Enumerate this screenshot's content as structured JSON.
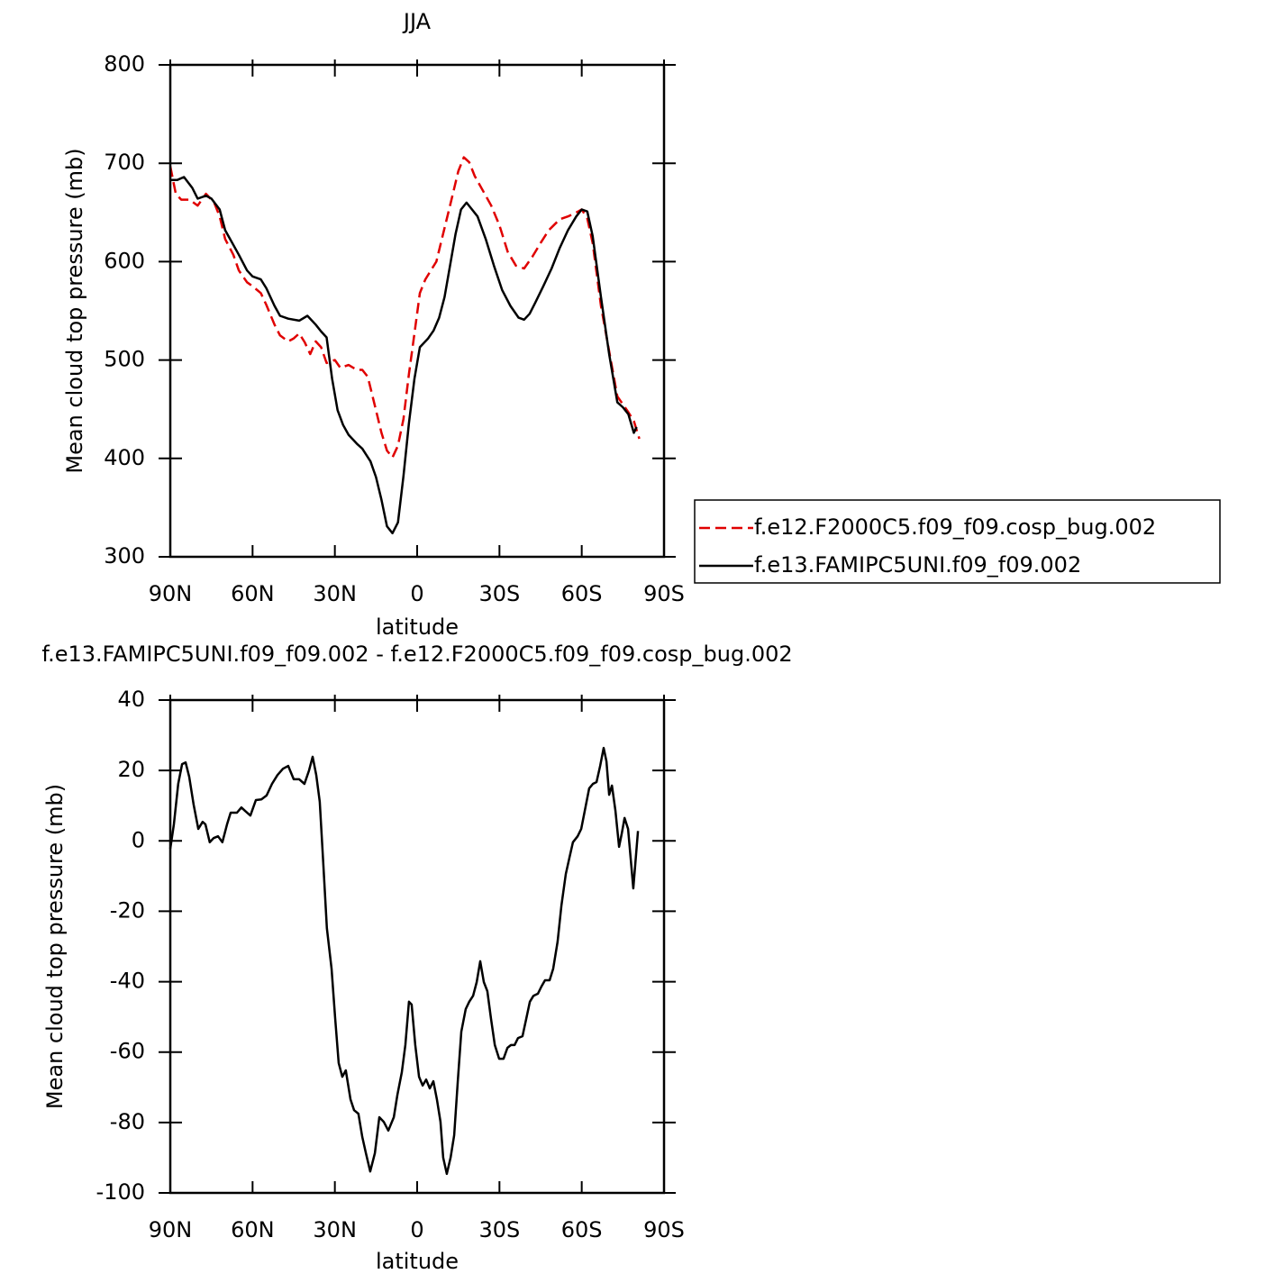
{
  "chart_data": [
    {
      "type": "line",
      "title": "JJA",
      "x_label": "latitude",
      "y_label": "Mean cloud top pressure (mb)",
      "xlim": [
        90,
        -90
      ],
      "xticks": [
        {
          "value": 90,
          "label": "90N"
        },
        {
          "value": 60,
          "label": "60N"
        },
        {
          "value": 30,
          "label": "30N"
        },
        0,
        {
          "value": -30,
          "label": "30S"
        },
        {
          "value": -60,
          "label": "60S"
        },
        {
          "value": -90,
          "label": "90S"
        }
      ],
      "ylim": [
        300,
        800
      ],
      "yticks": [
        300,
        400,
        500,
        600,
        700,
        800
      ],
      "legend_position": "right",
      "series": [
        {
          "name": "f.e12.F2000C5.f09_f09.cosp_bug.002",
          "color": "#e00000",
          "dash": true,
          "x": [
            90,
            88,
            86,
            83,
            80,
            77,
            74,
            72,
            70,
            67,
            65,
            62,
            60,
            57,
            55,
            52,
            50,
            47,
            45,
            43,
            41,
            39,
            37,
            35,
            33,
            30,
            28,
            25,
            22,
            20,
            18,
            15,
            13,
            11,
            9,
            7,
            5,
            3,
            1,
            -1,
            -3,
            -5,
            -7,
            -9,
            -12,
            -15,
            -17,
            -19,
            -21,
            -24,
            -27,
            -30,
            -33,
            -36,
            -39,
            -42,
            -45,
            -48,
            -52,
            -55,
            -58,
            -60,
            -62,
            -64,
            -67,
            -70,
            -73,
            -75,
            -77,
            -79,
            -81
          ],
          "values": [
            697,
            669,
            663,
            663,
            657,
            669,
            660,
            646,
            623,
            607,
            591,
            579,
            575,
            568,
            556,
            536,
            525,
            519,
            522,
            527,
            518,
            506,
            519,
            513,
            497,
            500,
            492,
            495,
            490,
            490,
            483,
            449,
            426,
            408,
            401,
            413,
            440,
            486,
            527,
            568,
            582,
            591,
            600,
            623,
            657,
            692,
            706,
            701,
            687,
            672,
            657,
            637,
            610,
            596,
            593,
            605,
            619,
            632,
            643,
            646,
            650,
            653,
            644,
            619,
            555,
            509,
            463,
            455,
            447,
            438,
            420
          ]
        },
        {
          "name": "f.e13.FAMIPC5UNI.f09_f09.002",
          "color": "#000000",
          "dash": false,
          "x": [
            90,
            87.5,
            85,
            82,
            80,
            77,
            75,
            72,
            70,
            65,
            62,
            60,
            57,
            55,
            52,
            50,
            47,
            43,
            40,
            37,
            35,
            33,
            31,
            29,
            27,
            25,
            22,
            20,
            17,
            15,
            13,
            11,
            9,
            7,
            5,
            3,
            1,
            -1,
            -4,
            -6,
            -8,
            -10,
            -12,
            -14,
            -16,
            -18,
            -20,
            -22,
            -25,
            -28,
            -31,
            -34,
            -37,
            -39,
            -41,
            -43,
            -46,
            -49,
            -52,
            -55,
            -58,
            -60,
            -62,
            -64,
            -67,
            -70,
            -73,
            -75,
            -77,
            -79,
            -80
          ],
          "values": [
            683,
            683,
            686,
            675,
            664,
            667,
            664,
            653,
            632,
            607,
            591,
            585,
            582,
            573,
            555,
            545,
            542,
            540,
            545,
            536,
            529,
            523,
            481,
            449,
            434,
            424,
            415,
            410,
            397,
            381,
            358,
            331,
            324,
            335,
            382,
            436,
            481,
            513,
            522,
            530,
            543,
            564,
            596,
            628,
            653,
            660,
            653,
            646,
            623,
            596,
            571,
            555,
            543,
            541,
            547,
            558,
            575,
            593,
            614,
            632,
            646,
            653,
            651,
            626,
            564,
            506,
            457,
            452,
            445,
            426,
            432
          ]
        }
      ]
    },
    {
      "type": "line",
      "title": "f.e13.FAMIPC5UNI.f09_f09.002 - f.e12.F2000C5.f09_f09.cosp_bug.002",
      "x_label": "latitude",
      "y_label": "Mean cloud top pressure (mb)",
      "xlim": [
        90,
        -90
      ],
      "xticks": [
        {
          "value": 90,
          "label": "90N"
        },
        {
          "value": 60,
          "label": "60N"
        },
        {
          "value": 30,
          "label": "30N"
        },
        0,
        {
          "value": -30,
          "label": "30S"
        },
        {
          "value": -60,
          "label": "60S"
        },
        {
          "value": -90,
          "label": "90S"
        }
      ],
      "ylim": [
        -100,
        40
      ],
      "yticks": [
        -100,
        -80,
        -60,
        -40,
        -20,
        0,
        20,
        40
      ],
      "color": "#000000",
      "x": [
        90.0,
        88.7,
        87.1,
        85.7,
        84.4,
        83.1,
        81.5,
        79.8,
        78.2,
        77.2,
        75.6,
        74.2,
        72.6,
        71.0,
        69.3,
        68.0,
        65.7,
        64.1,
        62.7,
        60.8,
        58.8,
        56.8,
        54.9,
        52.9,
        50.9,
        48.9,
        47.0,
        45.0,
        43.0,
        41.1,
        39.4,
        38.1,
        36.8,
        35.5,
        34.2,
        32.9,
        31.2,
        29.9,
        28.6,
        27.3,
        26.0,
        24.3,
        23.0,
        21.4,
        20.0,
        18.7,
        17.1,
        15.4,
        13.8,
        12.2,
        10.5,
        8.5,
        7.2,
        5.6,
        4.3,
        3.0,
        2.0,
        0.7,
        -0.7,
        -2.0,
        -3.3,
        -4.6,
        -5.9,
        -7.2,
        -8.5,
        -9.5,
        -10.8,
        -12.2,
        -13.5,
        -14.8,
        -16.1,
        -17.7,
        -19.0,
        -20.4,
        -21.7,
        -23.0,
        -24.3,
        -25.6,
        -26.9,
        -28.3,
        -29.9,
        -31.5,
        -32.9,
        -34.2,
        -35.5,
        -36.8,
        -38.4,
        -39.8,
        -41.1,
        -42.4,
        -44.0,
        -45.3,
        -46.6,
        -48.3,
        -49.6,
        -51.2,
        -52.6,
        -54.2,
        -55.5,
        -56.8,
        -58.5,
        -59.8,
        -61.1,
        -62.7,
        -64.1,
        -65.4,
        -66.7,
        -68.0,
        -69.0,
        -70.0,
        -71.0,
        -72.3,
        -73.6,
        -74.6,
        -75.6,
        -76.9,
        -77.9,
        -78.8,
        -80.5
      ],
      "values": [
        -2.2,
        4.7,
        16.2,
        21.8,
        22.3,
        18.2,
        10.3,
        3.4,
        5.4,
        4.7,
        -0.4,
        0.8,
        1.3,
        -0.4,
        4.7,
        8.0,
        8.0,
        9.5,
        8.5,
        7.2,
        11.6,
        11.8,
        12.9,
        16.2,
        18.7,
        20.5,
        21.3,
        17.5,
        17.5,
        16.2,
        20.0,
        23.9,
        18.7,
        11.1,
        -6.8,
        -24.8,
        -36.3,
        -50.4,
        -63.1,
        -67.0,
        -65.2,
        -73.4,
        -76.5,
        -77.5,
        -84.1,
        -88.7,
        -93.9,
        -88.7,
        -78.5,
        -79.8,
        -82.3,
        -78.5,
        -72.1,
        -65.7,
        -58.0,
        -45.7,
        -46.5,
        -58.0,
        -67.0,
        -69.5,
        -67.8,
        -70.3,
        -68.3,
        -73.4,
        -79.8,
        -90.0,
        -94.6,
        -90.0,
        -83.6,
        -68.3,
        -54.2,
        -47.8,
        -45.7,
        -44.0,
        -40.1,
        -34.2,
        -40.1,
        -42.7,
        -50.4,
        -58.0,
        -61.9,
        -61.9,
        -58.8,
        -58.0,
        -58.0,
        -56.0,
        -55.5,
        -50.4,
        -45.7,
        -44.0,
        -43.4,
        -41.4,
        -39.6,
        -39.6,
        -36.3,
        -28.6,
        -18.4,
        -9.4,
        -4.8,
        -0.4,
        1.3,
        3.4,
        8.5,
        14.9,
        16.2,
        16.7,
        21.3,
        26.4,
        22.6,
        13.1,
        15.7,
        8.5,
        -1.7,
        2.1,
        6.5,
        3.4,
        -5.6,
        -13.5,
        2.8
      ]
    }
  ]
}
